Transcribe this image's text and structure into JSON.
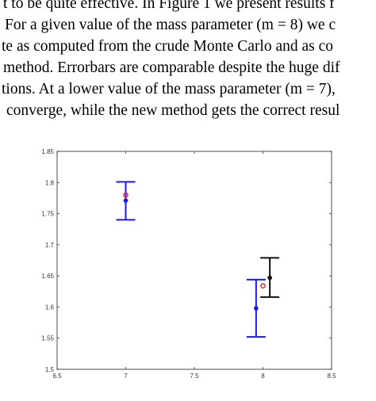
{
  "text_lines": [
    "t to be quite effective. In Figure 1 we present results f",
    "For a given value of the mass parameter (m = 8) we c",
    "te as computed from the crude Monte Carlo and as co",
    "method. Errorbars are comparable despite the huge dif",
    "tions. At a lower value of the mass parameter (m = 7),",
    "converge, while the new method gets the correct resul"
  ],
  "chart_data": {
    "type": "scatter",
    "title": "",
    "xlabel": "",
    "ylabel": "",
    "xlim": [
      6.5,
      8.5
    ],
    "ylim": [
      1.5,
      1.85
    ],
    "xticks": [
      "6.5",
      "7",
      "7.5",
      "8",
      "8.5"
    ],
    "yticks": [
      "1.5",
      "1.55",
      "1.6",
      "1.65",
      "1.7",
      "1.75",
      "1.8",
      "1.85"
    ],
    "grid": false,
    "series": [
      {
        "color": "#1a1ae6",
        "marker": "filled-circle",
        "points": [
          {
            "x": 7.0,
            "y": 1.771,
            "err_low": 1.74,
            "err_high": 1.801
          },
          {
            "x": 7.95,
            "y": 1.598,
            "err_low": 1.552,
            "err_high": 1.644
          }
        ]
      },
      {
        "color": "#111111",
        "marker": "filled-circle",
        "points": [
          {
            "x": 8.05,
            "y": 1.647,
            "err_low": 1.616,
            "err_high": 1.679
          }
        ]
      },
      {
        "color": "#e0202a",
        "marker": "open-circle",
        "points": [
          {
            "x": 7.0,
            "y": 1.78
          },
          {
            "x": 8.0,
            "y": 1.634
          }
        ]
      }
    ]
  }
}
